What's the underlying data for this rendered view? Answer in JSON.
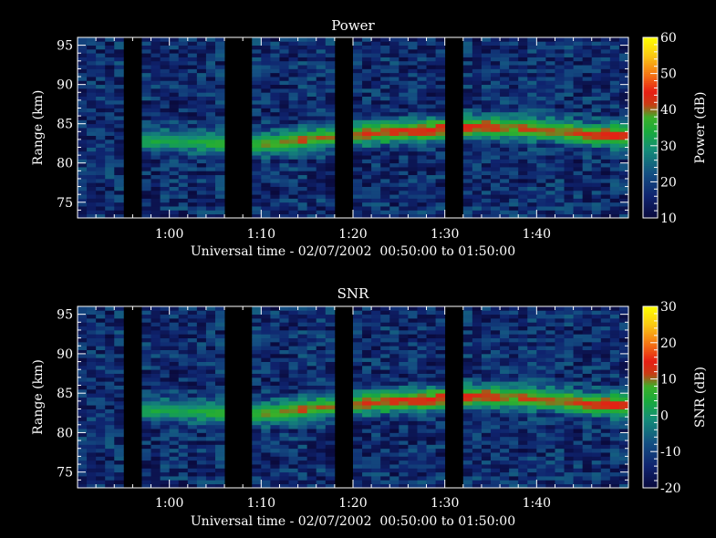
{
  "chart_data": [
    {
      "type": "heatmap",
      "title": "Power",
      "xlabel": "Universal time - 02/07/2002  00:50:00 to 01:50:00",
      "ylabel": "Range (km)",
      "x_tick_labels": [
        "1:00",
        "1:10",
        "1:20",
        "1:30",
        "1:40"
      ],
      "x_tick_minutes": [
        60,
        70,
        80,
        90,
        100
      ],
      "xlim_minutes": [
        50,
        110
      ],
      "y_ticks": [
        75,
        80,
        85,
        90,
        95
      ],
      "ylim": [
        73,
        96
      ],
      "colorbar": {
        "label": "Power (dB)",
        "ticks": [
          10,
          20,
          30,
          40,
          50,
          60
        ],
        "range": [
          10,
          60
        ]
      },
      "data_gaps_minutes": [
        [
          55.0,
          57.0
        ],
        [
          66.5,
          68.5
        ],
        [
          78.0,
          80.0
        ],
        [
          90.0,
          92.0
        ]
      ],
      "layer": {
        "description": "enhanced echo layer",
        "times_minutes": [
          58,
          62,
          66,
          70,
          74,
          78,
          82,
          86,
          90,
          94,
          98,
          102,
          106,
          110
        ],
        "center_km": [
          82.9,
          82.8,
          82.4,
          82.4,
          82.9,
          83.4,
          83.8,
          84.1,
          84.4,
          84.7,
          84.5,
          84.1,
          83.7,
          83.5
        ],
        "peak_db": [
          33,
          32,
          36,
          38,
          40,
          41,
          42,
          43,
          43,
          43,
          40,
          41,
          43,
          45
        ]
      },
      "background_db": 17
    },
    {
      "type": "heatmap",
      "title": "SNR",
      "xlabel": "Universal time - 02/07/2002  00:50:00 to 01:50:00",
      "ylabel": "Range (km)",
      "x_tick_labels": [
        "1:00",
        "1:10",
        "1:20",
        "1:30",
        "1:40"
      ],
      "x_tick_minutes": [
        60,
        70,
        80,
        90,
        100
      ],
      "xlim_minutes": [
        50,
        110
      ],
      "y_ticks": [
        75,
        80,
        85,
        90,
        95
      ],
      "ylim": [
        73,
        96
      ],
      "colorbar": {
        "label": "SNR (dB)",
        "ticks": [
          -20,
          -10,
          0,
          10,
          20,
          30
        ],
        "range": [
          -20,
          30
        ]
      },
      "data_gaps_minutes": [
        [
          55.0,
          57.0
        ],
        [
          66.5,
          68.5
        ],
        [
          78.0,
          80.0
        ],
        [
          90.0,
          92.0
        ]
      ],
      "layer": {
        "description": "enhanced echo layer",
        "times_minutes": [
          58,
          62,
          66,
          70,
          74,
          78,
          82,
          86,
          90,
          94,
          98,
          102,
          106,
          110
        ],
        "center_km": [
          82.9,
          82.8,
          82.4,
          82.4,
          82.9,
          83.4,
          83.8,
          84.1,
          84.4,
          84.7,
          84.5,
          84.1,
          83.7,
          83.5
        ],
        "peak_db": [
          3,
          2,
          6,
          8,
          10,
          11,
          12,
          13,
          13,
          13,
          10,
          11,
          13,
          15
        ]
      },
      "background_db": -13
    }
  ]
}
